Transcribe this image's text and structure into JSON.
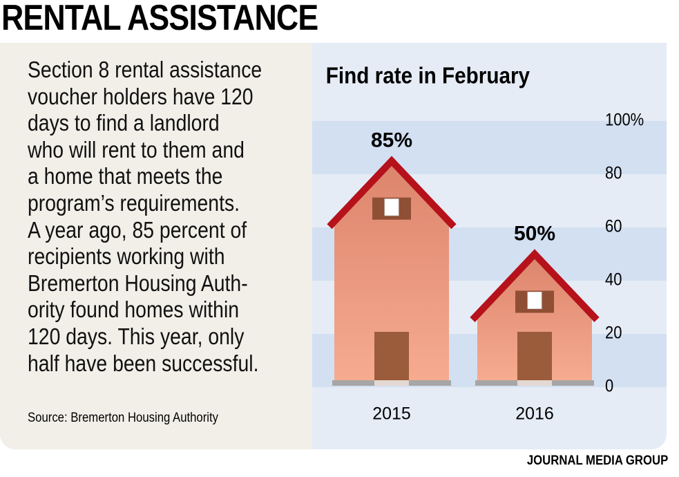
{
  "title": "RENTAL ASSISTANCE",
  "body_lines": [
    "Section 8 rental assistance",
    "voucher holders have 120",
    "days to find a landlord",
    "who will rent to them and",
    "a home that meets the",
    "program’s requirements.",
    "A year ago, 85 percent of",
    "recipients working with",
    "Bremerton Housing Auth-",
    "ority found homes within",
    "120 days. This year, only",
    "half have been successful."
  ],
  "source": "Source: Bremerton Housing Authority",
  "credit": "JOURNAL MEDIA GROUP",
  "chart_data": {
    "type": "bar",
    "title": "Find rate in February",
    "categories": [
      "2015",
      "2016"
    ],
    "values": [
      85,
      50
    ],
    "value_labels": [
      "85%",
      "50%"
    ],
    "color": "#e99278",
    "roof_color": "#b5121b",
    "ylim": [
      0,
      100
    ],
    "yticks": [
      0,
      20,
      40,
      60,
      80,
      {
        "value": 100,
        "label": "100%"
      }
    ],
    "banded_grid": true
  }
}
